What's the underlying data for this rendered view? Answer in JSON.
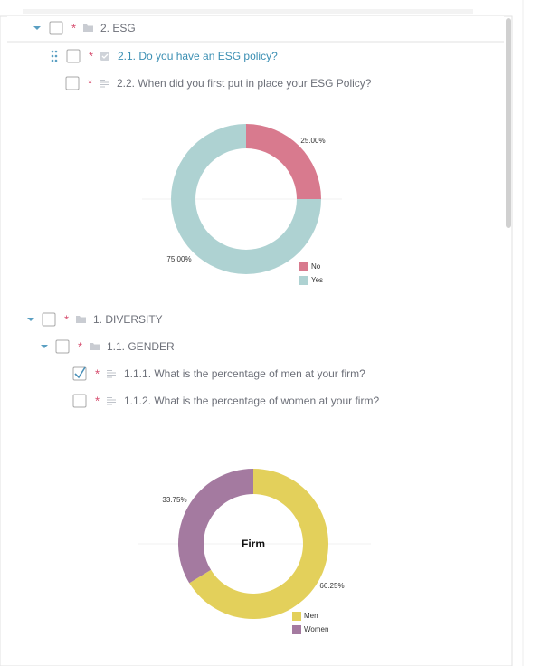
{
  "required_mark": "*",
  "tree": [
    {
      "label": "2. ESG",
      "checked": false
    },
    {
      "label": "2.1. Do you have an ESG policy?",
      "checked": false
    },
    {
      "label": "2.2. When did you first put in place your ESG Policy?",
      "checked": false
    },
    {
      "label": "1. DIVERSITY",
      "checked": false
    },
    {
      "label": "1.1. GENDER",
      "checked": false
    },
    {
      "label": "1.1.1. What is the percentage of men at your firm?",
      "checked": true
    },
    {
      "label": "1.1.2. What is the percentage of women at your firm?",
      "checked": false
    }
  ],
  "chart_data": [
    {
      "type": "pie",
      "categories": [
        "No",
        "Yes"
      ],
      "values": [
        25,
        75
      ],
      "value_labels": [
        "25.00%",
        "75.00%"
      ],
      "colors": [
        "#d87a8e",
        "#aed2d2"
      ]
    },
    {
      "type": "pie",
      "center_label": "Firm",
      "categories": [
        "Men",
        "Women"
      ],
      "values": [
        66.25,
        33.75
      ],
      "value_labels": [
        "66.25%",
        "33.75%"
      ],
      "colors": [
        "#e3d05b",
        "#a47aa0"
      ]
    }
  ]
}
